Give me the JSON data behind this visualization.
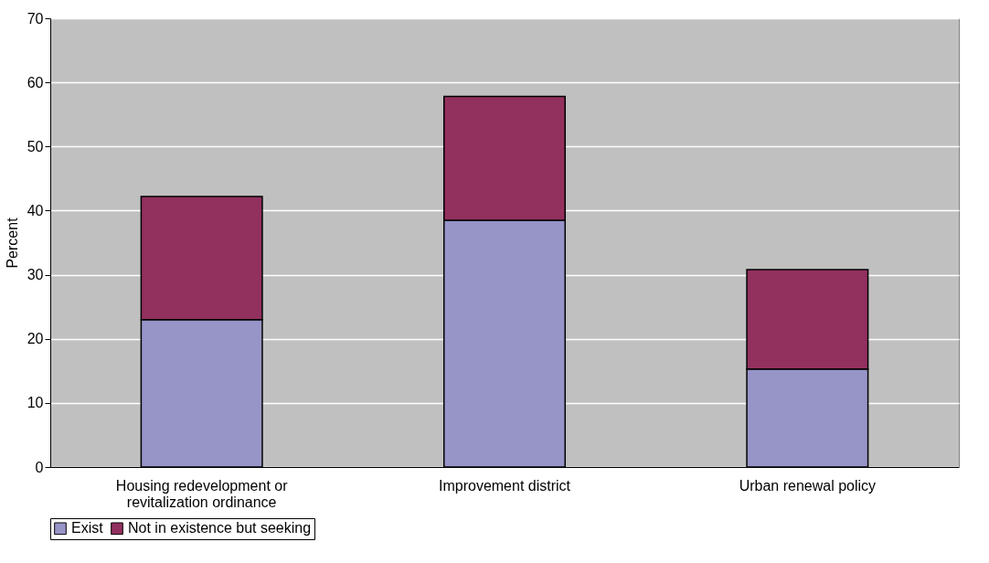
{
  "chart_data": {
    "type": "bar",
    "stacked": true,
    "ylabel": "Percent",
    "categories": [
      "Housing redevelopment or revitalization ordinance",
      "Improvement district",
      "Urban renewal policy"
    ],
    "series": [
      {
        "name": "Exist",
        "color": "#9794c8",
        "values": [
          23.0,
          38.5,
          15.3
        ]
      },
      {
        "name": "Not in existence but seeking",
        "color": "#92305e",
        "values": [
          19.2,
          19.3,
          15.5
        ]
      }
    ],
    "ylim": [
      0,
      70
    ],
    "yticks": [
      0,
      10,
      20,
      30,
      40,
      50,
      60,
      70
    ],
    "grid": "y",
    "legend": "bottom"
  }
}
